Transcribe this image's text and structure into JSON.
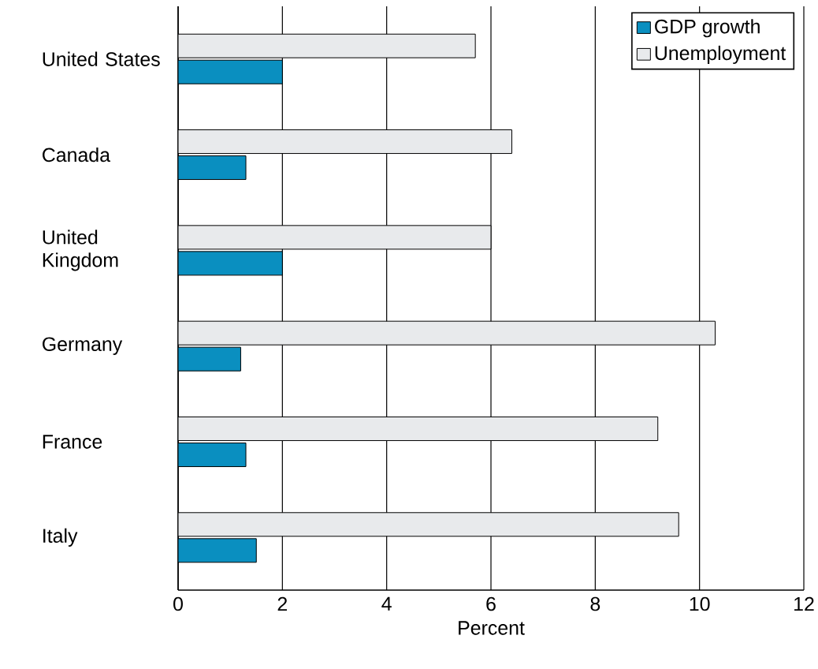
{
  "chart_data": {
    "type": "bar",
    "orientation": "horizontal",
    "categories": [
      "United States",
      "Canada",
      "United Kingdom",
      "Germany",
      "France",
      "Italy"
    ],
    "series": [
      {
        "name": "GDP growth",
        "color": "#0a8fc0",
        "values": [
          2.0,
          1.3,
          2.0,
          1.2,
          1.3,
          1.5
        ]
      },
      {
        "name": "Unemployment",
        "color": "#e8eaec",
        "values": [
          5.7,
          6.4,
          6.0,
          10.3,
          9.2,
          9.6
        ]
      }
    ],
    "xlabel": "Percent",
    "xlim": [
      0,
      12
    ],
    "xticks": [
      0,
      2,
      4,
      6,
      8,
      10,
      12
    ],
    "grid": "x",
    "legend": "top right"
  }
}
